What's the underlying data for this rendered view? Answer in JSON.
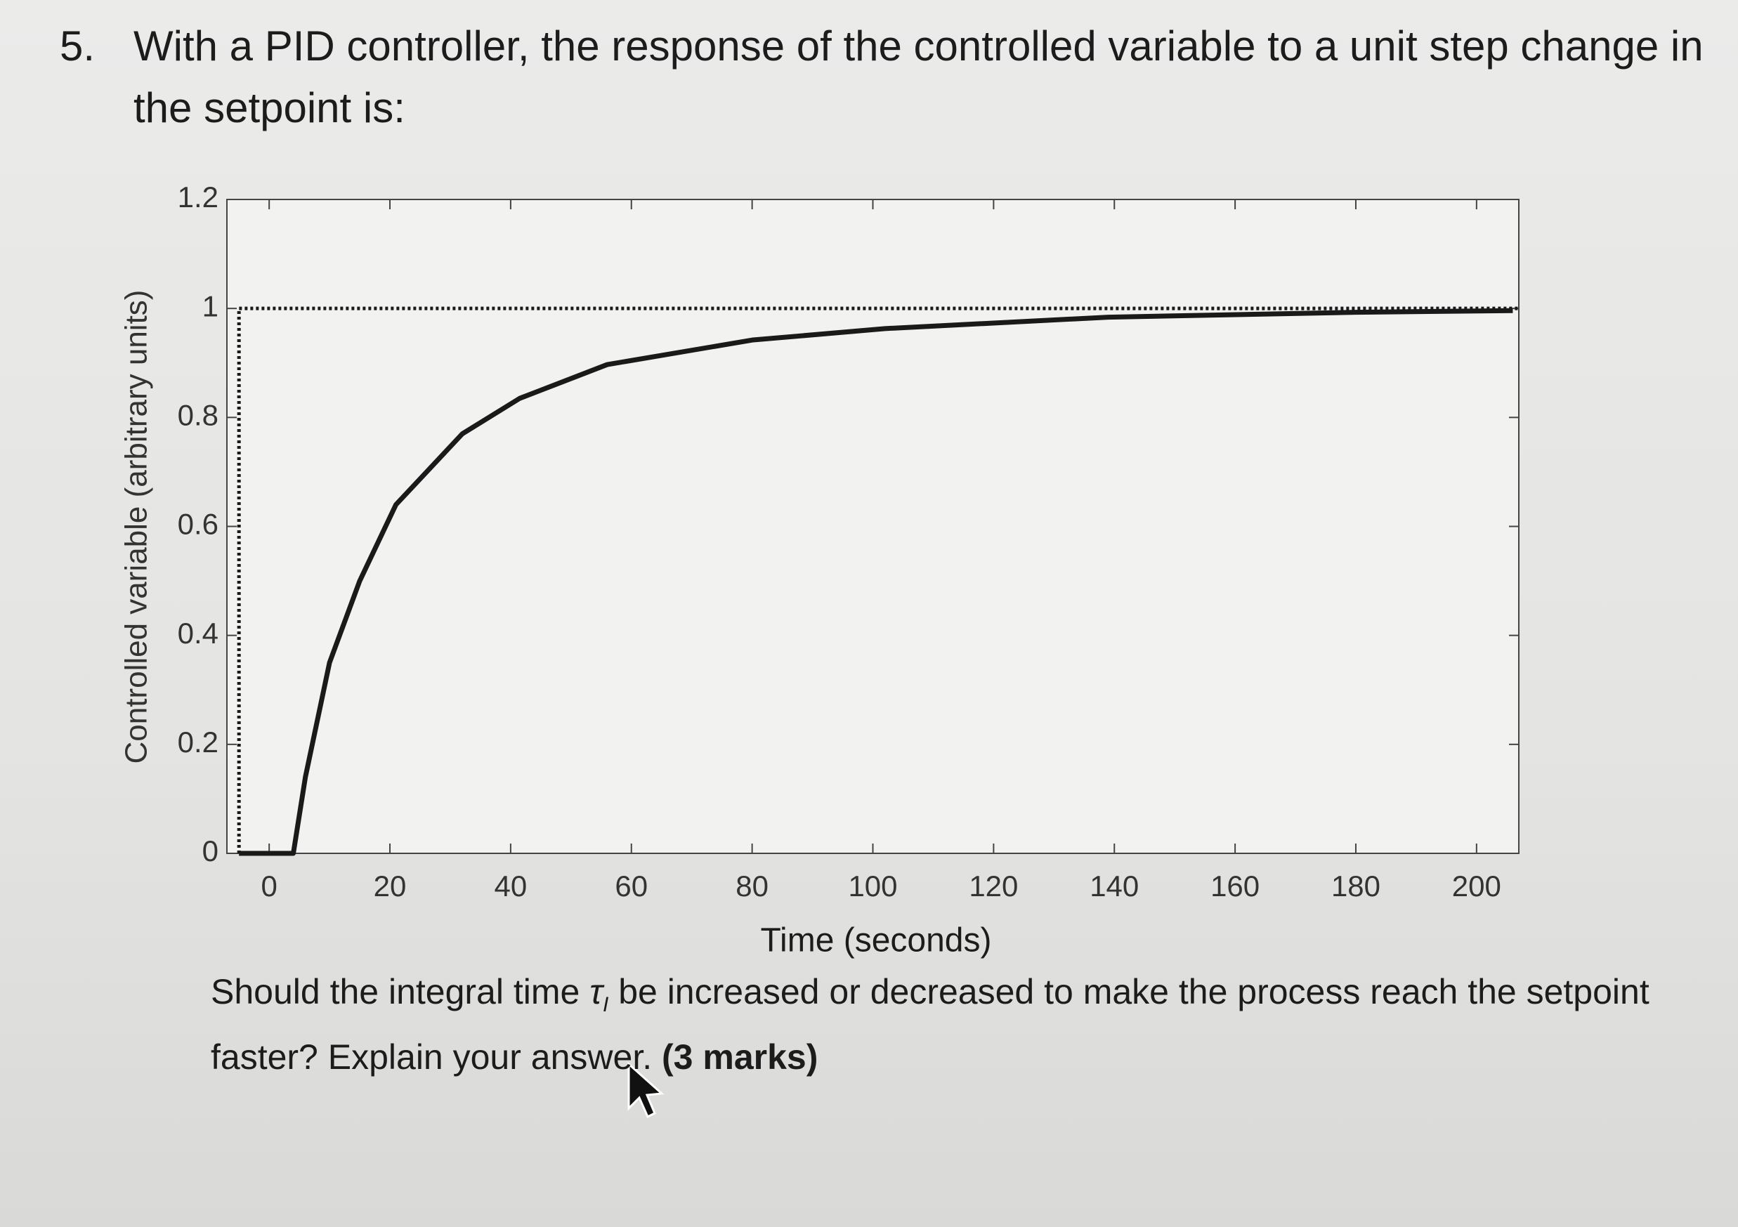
{
  "question": {
    "number": "5.",
    "text": "With a PID controller, the response of the controlled variable to a unit step change in the setpoint is:"
  },
  "chart_data": {
    "type": "line",
    "x_label": "Time (seconds)",
    "y_label": "Controlled variable (arbitrary units)",
    "xlim": [
      -7,
      207
    ],
    "ylim": [
      0,
      1.2
    ],
    "xticks": [
      0,
      20,
      40,
      60,
      80,
      100,
      120,
      140,
      160,
      180,
      200
    ],
    "yticks": [
      0,
      0.2,
      0.4,
      0.6,
      0.8,
      1,
      1.2
    ],
    "series": [
      {
        "color": "#1a1a1a",
        "style": "dotted",
        "x": [
          -5,
          -5,
          207
        ],
        "values": [
          0,
          1,
          1
        ]
      },
      {
        "color": "#1a1a1a",
        "style": "solid",
        "x": [
          -5,
          4,
          6,
          10,
          15,
          21,
          32,
          41.5,
          56,
          80,
          102,
          139,
          180,
          206
        ],
        "values": [
          0,
          0,
          0.14,
          0.35,
          0.5,
          0.64,
          0.77,
          0.835,
          0.897,
          0.942,
          0.963,
          0.984,
          0.993,
          0.996
        ]
      }
    ]
  },
  "follow_up": {
    "before": "Should the integral time",
    "symbol": "τ",
    "subscript": "I",
    "after": "be increased or decreased to make the process reach the setpoint faster? Explain your answer.",
    "marks": "(3 marks)"
  }
}
